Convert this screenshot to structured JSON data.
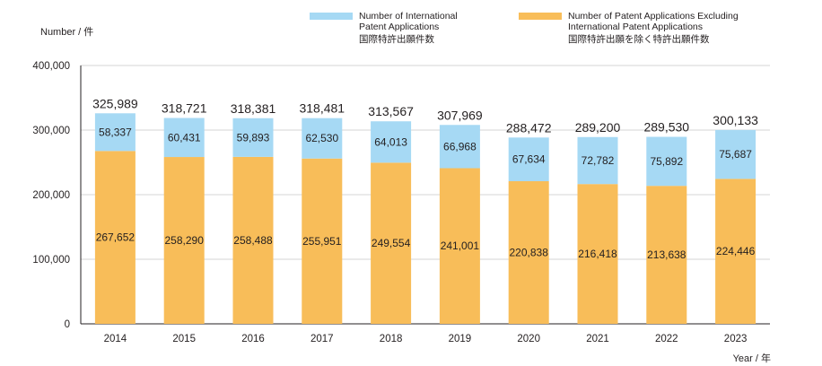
{
  "chart_data": {
    "type": "bar",
    "stacked": true,
    "ylabel": "Number / 件",
    "xlabel": "Year / 年",
    "ylim": [
      0,
      400000
    ],
    "yticks": [
      "0",
      "100,000",
      "200,000",
      "300,000",
      "400,000"
    ],
    "grid": true,
    "legend_position": "top-right",
    "categories": [
      "2014",
      "2015",
      "2016",
      "2017",
      "2018",
      "2019",
      "2020",
      "2021",
      "2022",
      "2023"
    ],
    "series": [
      {
        "name": "Number of Patent Applications Excluding International Patent Applications 国際特許出願を除く特許出願件数",
        "color": "#f8bd59",
        "values": [
          267652,
          258290,
          258488,
          255951,
          249554,
          241001,
          220838,
          216418,
          213638,
          224446
        ],
        "labels": [
          "267,652",
          "258,290",
          "258,488",
          "255,951",
          "249,554",
          "241,001",
          "220,838",
          "216,418",
          "213,638",
          "224,446"
        ]
      },
      {
        "name": "Number of International Patent Applications 国際特許出願件数",
        "color": "#a6d9f4",
        "values": [
          58337,
          60431,
          59893,
          62530,
          64013,
          66968,
          67634,
          72782,
          75892,
          75687
        ],
        "labels": [
          "58,337",
          "60,431",
          "59,893",
          "62,530",
          "64,013",
          "66,968",
          "67,634",
          "72,782",
          "75,892",
          "75,687"
        ]
      }
    ],
    "totals": [
      325989,
      318721,
      318381,
      318481,
      313567,
      307969,
      288472,
      289200,
      289530,
      300133
    ],
    "total_labels": [
      "325,989",
      "318,721",
      "318,381",
      "318,481",
      "313,567",
      "307,969",
      "288,472",
      "289,200",
      "289,530",
      "300,133"
    ]
  },
  "legend": {
    "intl": {
      "line1": "Number of International",
      "line2": "Patent Applications",
      "line3": "国際特許出願件数",
      "color": "#a6d9f4"
    },
    "excl": {
      "line1": "Number of Patent Applications Excluding",
      "line2": "International Patent Applications",
      "line3": "国際特許出願を除く特許出願件数",
      "color": "#f8bd59"
    }
  }
}
